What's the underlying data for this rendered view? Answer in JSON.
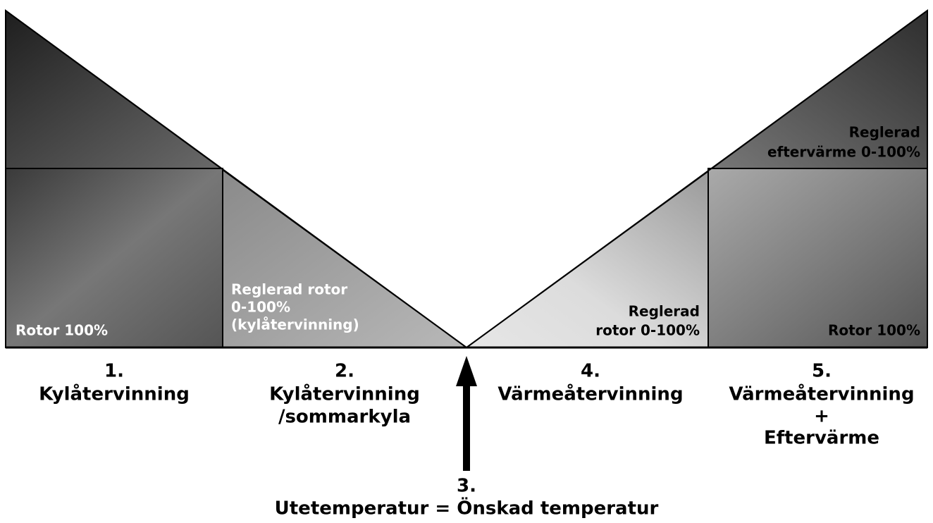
{
  "regions": [
    {
      "lines": [
        "Rotor 100%"
      ]
    },
    {
      "lines": [
        "Reglerad rotor",
        "0-100%",
        "(kylåtervinning)"
      ]
    },
    {
      "lines": [
        "Reglerad",
        "rotor 0-100%"
      ]
    },
    {
      "lines": [
        "Reglerad",
        "eftervärme 0-100%"
      ]
    },
    {
      "lines": [
        "Rotor 100%"
      ]
    }
  ],
  "sections": [
    {
      "number": "1.",
      "lines": [
        "Kylåtervinning"
      ]
    },
    {
      "number": "2.",
      "lines": [
        "Kylåtervinning",
        "/sommarkyla"
      ]
    },
    {
      "number": "3.",
      "lines": [
        "Utetemperatur = Önskad temperatur"
      ]
    },
    {
      "number": "4.",
      "lines": [
        "Värmeåtervinning"
      ]
    },
    {
      "number": "5.",
      "lines": [
        "Värmeåtervinning",
        "+",
        "Eftervärme"
      ]
    }
  ]
}
